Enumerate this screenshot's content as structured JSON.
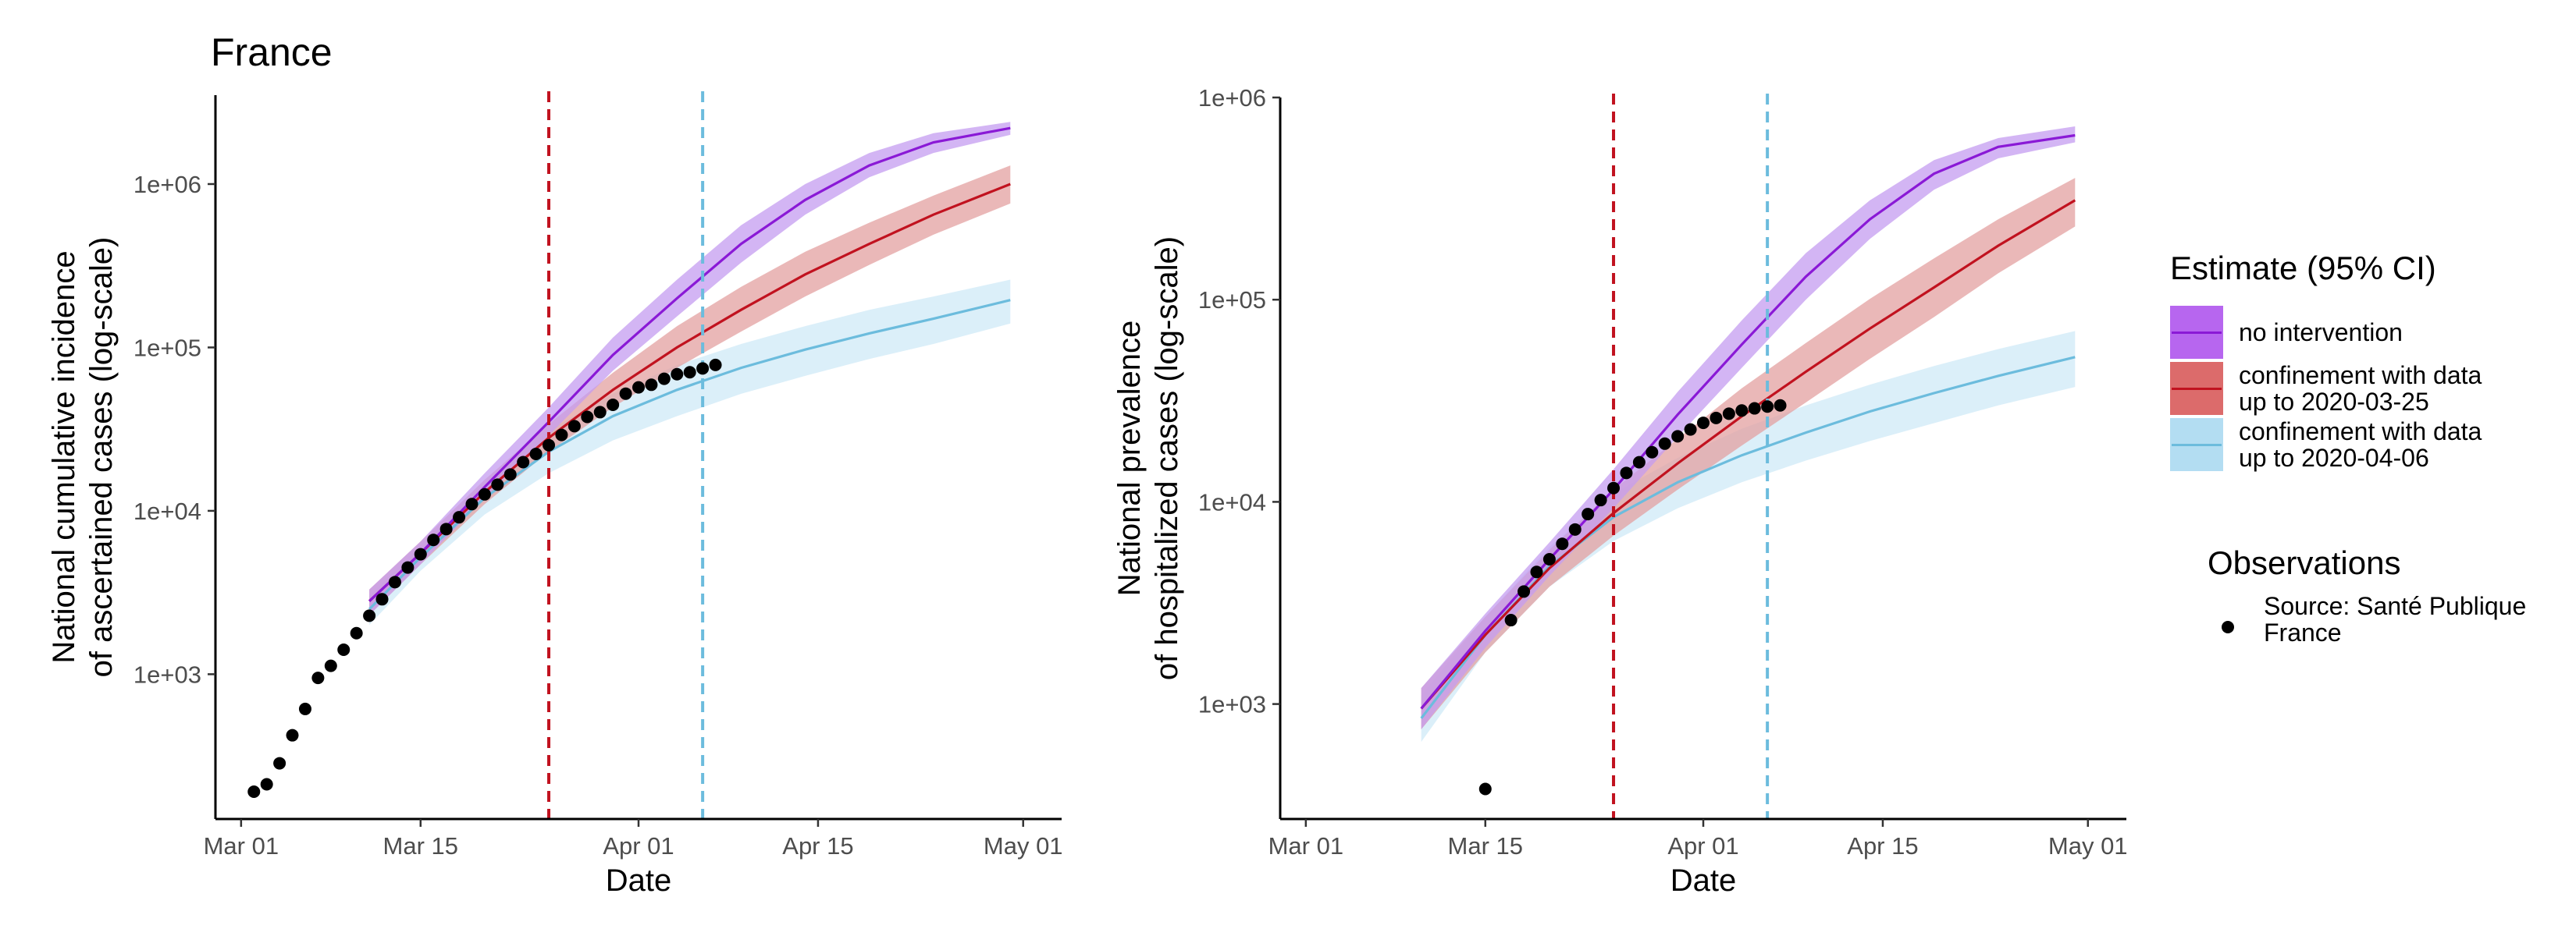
{
  "title": "France",
  "colors": {
    "no_intervention": "#8a19d6",
    "no_intervention_band": "#c49cf0",
    "confinement_0325": "#c1121f",
    "confinement_0325_band": "#e3a0a0",
    "confinement_0406": "#6cbcdd",
    "confinement_0406_band": "#cfe9f7",
    "legend_fill_no_intervention": "#b766ef",
    "legend_fill_0325": "#dc6b6b",
    "legend_fill_0406": "#b3ddf2"
  },
  "legend": {
    "title": "Estimate (95% CI)",
    "items": [
      {
        "label": "no intervention",
        "key": "no_intervention"
      },
      {
        "label": "confinement with data\nup to 2020-03-25",
        "key": "confinement_0325"
      },
      {
        "label": "confinement with data\nup to 2020-04-06",
        "key": "confinement_0406"
      }
    ],
    "observations_title": "Observations",
    "observations_label": "Source: Santé Publique France"
  },
  "chart_data": [
    {
      "type": "line",
      "title": "",
      "xlabel": "Date",
      "ylabel": [
        "National cumulative incidence",
        "of ascertained cases (log-scale)"
      ],
      "yscale": "log",
      "x_ticks": [
        "2020-03-01",
        "2020-03-15",
        "2020-04-01",
        "2020-04-15",
        "2020-05-01"
      ],
      "x_tick_labels": [
        "Mar 01",
        "Mar 15",
        "Apr 01",
        "Apr 15",
        "May 01"
      ],
      "xlim": [
        "2020-02-28",
        "2020-05-04"
      ],
      "y_ticks": [
        1000,
        10000,
        100000,
        1000000
      ],
      "y_tick_labels": [
        "1e+03",
        "1e+04",
        "1e+05",
        "1e+06"
      ],
      "ylim": [
        130,
        3500000
      ],
      "grid": false,
      "vlines": [
        {
          "x": "2020-03-25",
          "color_key": "confinement_0325",
          "style": "dashed"
        },
        {
          "x": "2020-04-06",
          "color_key": "confinement_0406",
          "style": "dashed"
        }
      ],
      "series": [
        {
          "key": "no_intervention",
          "x": [
            "2020-03-11",
            "2020-03-15",
            "2020-03-20",
            "2020-03-25",
            "2020-03-30",
            "2020-04-04",
            "2020-04-09",
            "2020-04-14",
            "2020-04-19",
            "2020-04-24",
            "2020-04-30"
          ],
          "y": [
            2800,
            5500,
            14000,
            35000,
            90000,
            200000,
            430000,
            800000,
            1300000,
            1800000,
            2200000
          ],
          "lower": [
            2300,
            4700,
            12000,
            29000,
            72000,
            155000,
            330000,
            650000,
            1100000,
            1550000,
            2000000
          ],
          "upper": [
            3300,
            6500,
            17000,
            43000,
            115000,
            260000,
            560000,
            1000000,
            1550000,
            2050000,
            2400000
          ]
        },
        {
          "key": "confinement_0325",
          "x": [
            "2020-03-11",
            "2020-03-15",
            "2020-03-20",
            "2020-03-25",
            "2020-03-30",
            "2020-04-04",
            "2020-04-09",
            "2020-04-14",
            "2020-04-19",
            "2020-04-24",
            "2020-04-30"
          ],
          "y": [
            2800,
            5500,
            13000,
            28000,
            55000,
            100000,
            170000,
            280000,
            430000,
            650000,
            1000000
          ],
          "lower": [
            2300,
            4700,
            11000,
            23000,
            43000,
            75000,
            125000,
            205000,
            320000,
            490000,
            760000
          ],
          "upper": [
            3300,
            6500,
            15500,
            34000,
            70000,
            135000,
            235000,
            385000,
            580000,
            850000,
            1300000
          ]
        },
        {
          "key": "confinement_0406",
          "x": [
            "2020-03-11",
            "2020-03-15",
            "2020-03-20",
            "2020-03-25",
            "2020-03-30",
            "2020-04-04",
            "2020-04-09",
            "2020-04-14",
            "2020-04-19",
            "2020-04-24",
            "2020-04-30"
          ],
          "y": [
            2500,
            5200,
            12000,
            23000,
            38000,
            55000,
            75000,
            97000,
            122000,
            150000,
            195000
          ],
          "lower": [
            2000,
            4300,
            9500,
            17000,
            27000,
            38000,
            52000,
            67000,
            85000,
            105000,
            140000
          ],
          "upper": [
            3000,
            6200,
            15500,
            31000,
            52000,
            78000,
            105000,
            135000,
            170000,
            205000,
            260000
          ]
        }
      ],
      "observations": {
        "x": [
          "2020-03-02",
          "2020-03-03",
          "2020-03-04",
          "2020-03-05",
          "2020-03-06",
          "2020-03-07",
          "2020-03-08",
          "2020-03-09",
          "2020-03-10",
          "2020-03-11",
          "2020-03-12",
          "2020-03-13",
          "2020-03-14",
          "2020-03-15",
          "2020-03-16",
          "2020-03-17",
          "2020-03-18",
          "2020-03-19",
          "2020-03-20",
          "2020-03-21",
          "2020-03-22",
          "2020-03-23",
          "2020-03-24",
          "2020-03-25",
          "2020-03-26",
          "2020-03-27",
          "2020-03-28",
          "2020-03-29",
          "2020-03-30",
          "2020-03-31",
          "2020-04-01",
          "2020-04-02",
          "2020-04-03",
          "2020-04-04",
          "2020-04-05",
          "2020-04-06",
          "2020-04-07"
        ],
        "y": [
          191,
          212,
          285,
          423,
          613,
          949,
          1126,
          1412,
          1784,
          2281,
          2876,
          3661,
          4499,
          5423,
          6633,
          7730,
          9134,
          10995,
          12612,
          14459,
          16689,
          19856,
          22302,
          25233,
          29155,
          32964,
          37575,
          40174,
          44550,
          52128,
          56989,
          59105,
          64338,
          68605,
          70478,
          74390,
          78167
        ]
      }
    },
    {
      "type": "line",
      "title": "",
      "xlabel": "Date",
      "ylabel": [
        "National prevalence",
        "of hospitalized cases (log-scale)"
      ],
      "yscale": "log",
      "x_ticks": [
        "2020-03-01",
        "2020-03-15",
        "2020-04-01",
        "2020-04-15",
        "2020-05-01"
      ],
      "x_tick_labels": [
        "Mar 01",
        "Mar 15",
        "Apr 01",
        "Apr 15",
        "May 01"
      ],
      "xlim": [
        "2020-02-28",
        "2020-05-04"
      ],
      "y_ticks": [
        1000,
        10000,
        100000,
        1000000
      ],
      "y_tick_labels": [
        "1e+03",
        "1e+04",
        "1e+05",
        "1e+06"
      ],
      "ylim": [
        270,
        1000000
      ],
      "grid": false,
      "vlines": [
        {
          "x": "2020-03-25",
          "color_key": "confinement_0325",
          "style": "dashed"
        },
        {
          "x": "2020-04-06",
          "color_key": "confinement_0406",
          "style": "dashed"
        }
      ],
      "series": [
        {
          "key": "no_intervention",
          "x": [
            "2020-03-10",
            "2020-03-15",
            "2020-03-20",
            "2020-03-25",
            "2020-03-30",
            "2020-04-04",
            "2020-04-09",
            "2020-04-14",
            "2020-04-19",
            "2020-04-24",
            "2020-04-30"
          ],
          "y": [
            950,
            2300,
            5200,
            11500,
            27000,
            60000,
            130000,
            250000,
            420000,
            570000,
            650000
          ],
          "lower": [
            750,
            1900,
            4300,
            9300,
            21000,
            46000,
            100000,
            200000,
            350000,
            500000,
            600000
          ],
          "upper": [
            1200,
            2800,
            6300,
            14500,
            35000,
            79000,
            170000,
            310000,
            490000,
            630000,
            720000
          ]
        },
        {
          "key": "confinement_0325",
          "x": [
            "2020-03-10",
            "2020-03-15",
            "2020-03-20",
            "2020-03-25",
            "2020-03-30",
            "2020-04-04",
            "2020-04-09",
            "2020-04-14",
            "2020-04-19",
            "2020-04-24",
            "2020-04-30"
          ],
          "y": [
            950,
            2200,
            4700,
            8800,
            15500,
            26500,
            44000,
            72000,
            115000,
            185000,
            310000
          ],
          "lower": [
            750,
            1800,
            3800,
            6800,
            11500,
            19000,
            31000,
            51000,
            82000,
            135000,
            230000
          ],
          "upper": [
            1200,
            2700,
            5800,
            11500,
            20500,
            36500,
            61000,
            101000,
            160000,
            250000,
            400000
          ]
        },
        {
          "key": "confinement_0406",
          "x": [
            "2020-03-10",
            "2020-03-15",
            "2020-03-20",
            "2020-03-25",
            "2020-03-30",
            "2020-04-04",
            "2020-04-09",
            "2020-04-14",
            "2020-04-19",
            "2020-04-24",
            "2020-04-30"
          ],
          "y": [
            850,
            2200,
            4800,
            8400,
            12500,
            17000,
            22000,
            28000,
            34500,
            42000,
            52000
          ],
          "lower": [
            650,
            1800,
            3800,
            6400,
            9300,
            12500,
            16000,
            20000,
            24500,
            30000,
            37000
          ],
          "upper": [
            1100,
            2700,
            6000,
            11000,
            16500,
            23000,
            30000,
            38000,
            47000,
            57000,
            70000
          ]
        }
      ],
      "observations": {
        "x": [
          "2020-03-15",
          "2020-03-17",
          "2020-03-18",
          "2020-03-19",
          "2020-03-20",
          "2020-03-21",
          "2020-03-22",
          "2020-03-23",
          "2020-03-24",
          "2020-03-25",
          "2020-03-26",
          "2020-03-27",
          "2020-03-28",
          "2020-03-29",
          "2020-03-30",
          "2020-03-31",
          "2020-04-01",
          "2020-04-02",
          "2020-04-03",
          "2020-04-04",
          "2020-04-05",
          "2020-04-06",
          "2020-04-07"
        ],
        "y": [
          380,
          2600,
          3600,
          4500,
          5200,
          6200,
          7300,
          8700,
          10200,
          11700,
          13900,
          15700,
          17600,
          19400,
          21100,
          22800,
          24600,
          26000,
          27300,
          28300,
          29000,
          29600,
          30000
        ]
      }
    }
  ]
}
